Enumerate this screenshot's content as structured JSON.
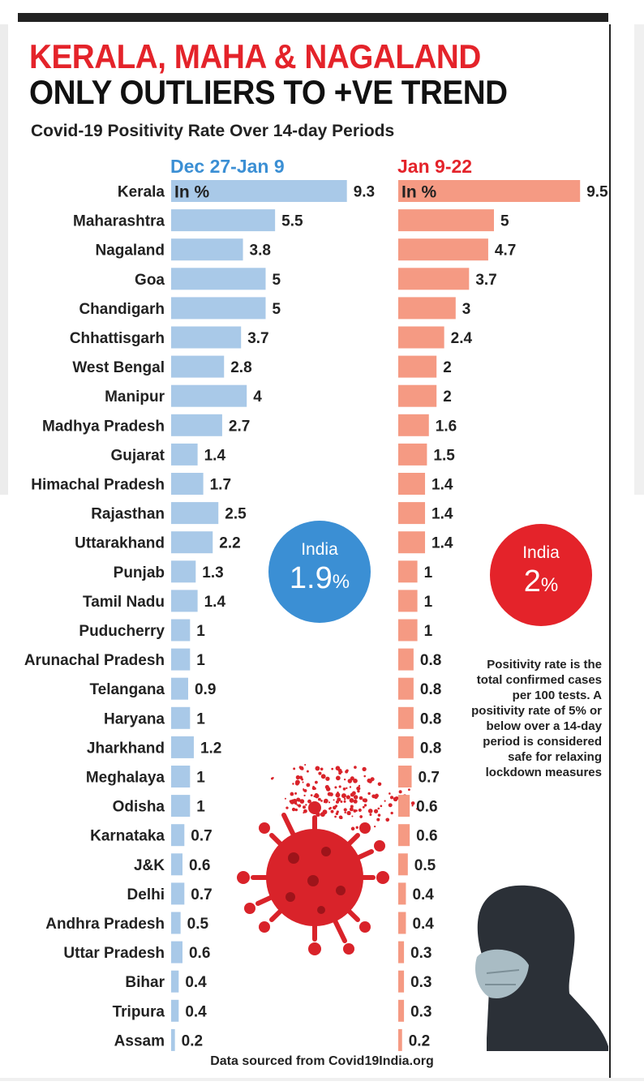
{
  "title_line1": "KERALA, MAHA & NAGALAND",
  "title_line2": "ONLY OUTLIERS TO +VE TREND",
  "subtitle": "Covid-19 Positivity Rate Over 14-day Periods",
  "source": "Data sourced from Covid19India.org",
  "note": "Positivity rate is the total confirmed cases per 100 tests. A positivity rate of 5% or below over a 14-day period is considered safe for relaxing lockdown measures",
  "india_badges": [
    {
      "label": "India",
      "value": "1.9",
      "unit": "%",
      "color": "#3b8fd4"
    },
    {
      "label": "India",
      "value": "2",
      "unit": "%",
      "color": "#e4232a"
    }
  ],
  "chart_data": {
    "type": "bar",
    "orientation": "horizontal",
    "unit_label": "In %",
    "categories": [
      "Kerala",
      "Maharashtra",
      "Nagaland",
      "Goa",
      "Chandigarh",
      "Chhattisgarh",
      "West Bengal",
      "Manipur",
      "Madhya Pradesh",
      "Gujarat",
      "Himachal Pradesh",
      "Rajasthan",
      "Uttarakhand",
      "Punjab",
      "Tamil Nadu",
      "Puducherry",
      "Arunachal Pradesh",
      "Telangana",
      "Haryana",
      "Jharkhand",
      "Meghalaya",
      "Odisha",
      "Karnataka",
      "J&K",
      "Delhi",
      "Andhra Pradesh",
      "Uttar Pradesh",
      "Bihar",
      "Tripura",
      "Assam"
    ],
    "series": [
      {
        "name": "Dec 27-Jan 9",
        "color": "#a9c9e8",
        "values": [
          9.3,
          5.5,
          3.8,
          5,
          5,
          3.7,
          2.8,
          4,
          2.7,
          1.4,
          1.7,
          2.5,
          2.2,
          1.3,
          1.4,
          1,
          1,
          0.9,
          1,
          1.2,
          1,
          1,
          0.7,
          0.6,
          0.7,
          0.5,
          0.6,
          0.4,
          0.4,
          0.2
        ]
      },
      {
        "name": "Jan 9-22",
        "color": "#f59a83",
        "values": [
          9.5,
          5,
          4.7,
          3.7,
          3,
          2.4,
          2,
          2,
          1.6,
          1.5,
          1.4,
          1.4,
          1.4,
          1,
          1,
          1,
          0.8,
          0.8,
          0.8,
          0.8,
          0.7,
          0.6,
          0.6,
          0.5,
          0.4,
          0.4,
          0.3,
          0.3,
          0.3,
          0.2
        ]
      }
    ],
    "header_colors": [
      "#3b8fd4",
      "#e4232a"
    ]
  }
}
